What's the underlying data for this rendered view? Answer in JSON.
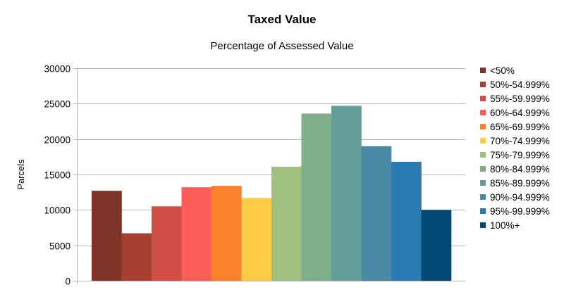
{
  "chart_data": {
    "type": "bar",
    "title": "Taxed Value",
    "subtitle": "Percentage of Assessed Value",
    "ylabel": "Parcels",
    "xlabel": "",
    "ylim": [
      0,
      30000
    ],
    "yticks": [
      0,
      5000,
      10000,
      15000,
      20000,
      25000,
      30000
    ],
    "grid": "horizontal",
    "legend_position": "right",
    "series": [
      {
        "name": "<50%",
        "value": 12700,
        "color": "#7e3426"
      },
      {
        "name": "50%-54.999%",
        "value": 6700,
        "color": "#a83f33"
      },
      {
        "name": "55%-59.999%",
        "value": 10500,
        "color": "#d05045"
      },
      {
        "name": "60%-64.999%",
        "value": 13200,
        "color": "#fd5f58"
      },
      {
        "name": "65%-69.999%",
        "value": 13400,
        "color": "#fe812f"
      },
      {
        "name": "70%-74.999%",
        "value": 11700,
        "color": "#fecb46"
      },
      {
        "name": "75%-79.999%",
        "value": 16100,
        "color": "#a0c07f"
      },
      {
        "name": "80%-84.999%",
        "value": 23600,
        "color": "#81ae8a"
      },
      {
        "name": "85%-89.999%",
        "value": 24700,
        "color": "#639e98"
      },
      {
        "name": "90%-94.999%",
        "value": 19000,
        "color": "#4a8aa4"
      },
      {
        "name": "95%-99.999%",
        "value": 16800,
        "color": "#2a7bb1"
      },
      {
        "name": "100%+",
        "value": 10000,
        "color": "#024978"
      }
    ]
  }
}
